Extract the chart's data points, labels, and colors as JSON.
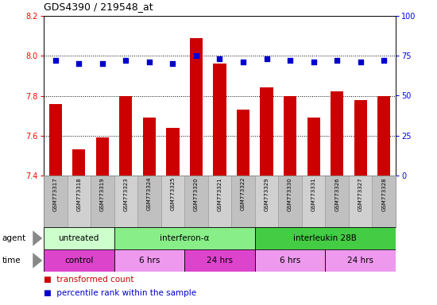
{
  "title": "GDS4390 / 219548_at",
  "samples": [
    "GSM773317",
    "GSM773318",
    "GSM773319",
    "GSM773323",
    "GSM773324",
    "GSM773325",
    "GSM773320",
    "GSM773321",
    "GSM773322",
    "GSM773329",
    "GSM773330",
    "GSM773331",
    "GSM773326",
    "GSM773327",
    "GSM773328"
  ],
  "transformed_counts": [
    7.76,
    7.53,
    7.59,
    7.8,
    7.69,
    7.64,
    8.09,
    7.96,
    7.73,
    7.84,
    7.8,
    7.69,
    7.82,
    7.78,
    7.8
  ],
  "percentile_ranks": [
    72,
    70,
    70,
    72,
    71,
    70,
    75,
    73,
    71,
    73,
    72,
    71,
    72,
    71,
    72
  ],
  "ylim_left": [
    7.4,
    8.2
  ],
  "ylim_right": [
    0,
    100
  ],
  "yticks_left": [
    7.4,
    7.6,
    7.8,
    8.0,
    8.2
  ],
  "yticks_right": [
    0,
    25,
    50,
    75,
    100
  ],
  "bar_color": "#cc0000",
  "dot_color": "#0000cc",
  "agent_groups": [
    {
      "label": "untreated",
      "start": 0,
      "end": 3,
      "color": "#ccffcc"
    },
    {
      "label": "interferon-α",
      "start": 3,
      "end": 9,
      "color": "#88ee88"
    },
    {
      "label": "interleukin 28B",
      "start": 9,
      "end": 15,
      "color": "#44cc44"
    }
  ],
  "time_groups": [
    {
      "label": "control",
      "start": 0,
      "end": 3,
      "color": "#dd44cc"
    },
    {
      "label": "6 hrs",
      "start": 3,
      "end": 6,
      "color": "#ee99ee"
    },
    {
      "label": "24 hrs",
      "start": 6,
      "end": 9,
      "color": "#dd44cc"
    },
    {
      "label": "6 hrs",
      "start": 9,
      "end": 12,
      "color": "#ee99ee"
    },
    {
      "label": "24 hrs",
      "start": 12,
      "end": 15,
      "color": "#ee99ee"
    }
  ],
  "legend_bar_color": "#cc0000",
  "legend_dot_color": "#0000cc",
  "bg_color": "#ffffff",
  "sample_bg": "#c8c8c8"
}
